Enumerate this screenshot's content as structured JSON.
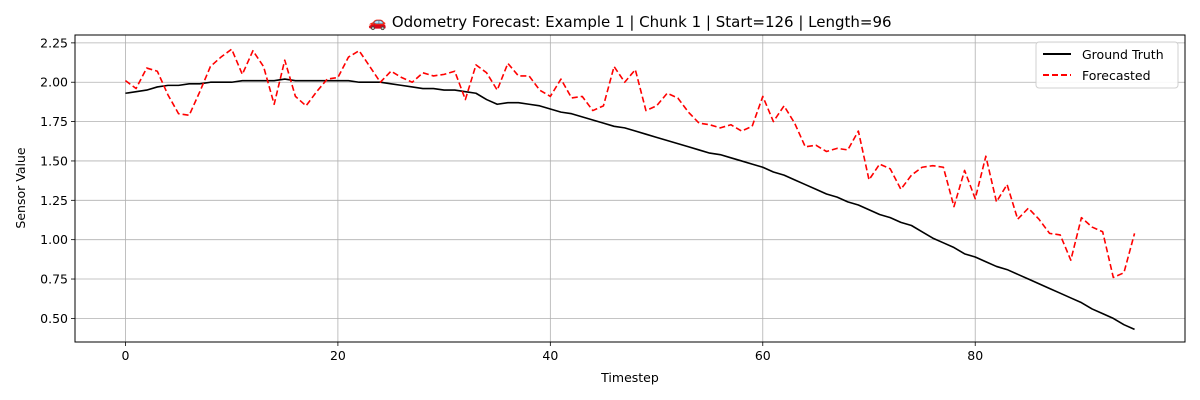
{
  "chart_data": {
    "type": "line",
    "title": "🚗 Odometry Forecast: Example 1 | Chunk 1 | Start=126 | Length=96",
    "xlabel": "Timestep",
    "ylabel": "Sensor Value",
    "xlim": [
      -4.75,
      99.75
    ],
    "ylim": [
      0.35,
      2.3
    ],
    "xticks": [
      0,
      20,
      40,
      60,
      80
    ],
    "yticks": [
      0.5,
      0.75,
      1.0,
      1.25,
      1.5,
      1.75,
      2.0,
      2.25
    ],
    "xtick_labels": [
      "0",
      "20",
      "40",
      "60",
      "80"
    ],
    "ytick_labels": [
      "0.50",
      "0.75",
      "1.00",
      "1.25",
      "1.50",
      "1.75",
      "2.00",
      "2.25"
    ],
    "grid": true,
    "legend_position": "top-right",
    "series": [
      {
        "name": "Ground Truth",
        "color": "#000000",
        "style": "solid",
        "values": [
          1.93,
          1.94,
          1.95,
          1.97,
          1.98,
          1.98,
          1.99,
          1.99,
          2.0,
          2.0,
          2.0,
          2.01,
          2.01,
          2.01,
          2.01,
          2.02,
          2.01,
          2.01,
          2.01,
          2.01,
          2.01,
          2.01,
          2.0,
          2.0,
          2.0,
          1.99,
          1.98,
          1.97,
          1.96,
          1.96,
          1.95,
          1.95,
          1.94,
          1.93,
          1.89,
          1.86,
          1.87,
          1.87,
          1.86,
          1.85,
          1.83,
          1.81,
          1.8,
          1.78,
          1.76,
          1.74,
          1.72,
          1.71,
          1.69,
          1.67,
          1.65,
          1.63,
          1.61,
          1.59,
          1.57,
          1.55,
          1.54,
          1.52,
          1.5,
          1.48,
          1.46,
          1.43,
          1.41,
          1.38,
          1.35,
          1.32,
          1.29,
          1.27,
          1.24,
          1.22,
          1.19,
          1.16,
          1.14,
          1.11,
          1.09,
          1.05,
          1.01,
          0.98,
          0.95,
          0.91,
          0.89,
          0.86,
          0.83,
          0.81,
          0.78,
          0.75,
          0.72,
          0.69,
          0.66,
          0.63,
          0.6,
          0.56,
          0.53,
          0.5,
          0.46,
          0.43
        ]
      },
      {
        "name": "Forecasted",
        "color": "#ff0000",
        "style": "dashed",
        "values": [
          2.01,
          1.96,
          2.09,
          2.07,
          1.92,
          1.8,
          1.79,
          1.94,
          2.1,
          2.16,
          2.21,
          2.05,
          2.2,
          2.1,
          1.86,
          2.14,
          1.91,
          1.85,
          1.94,
          2.02,
          2.03,
          2.16,
          2.2,
          2.1,
          2.0,
          2.07,
          2.03,
          2.0,
          2.06,
          2.04,
          2.05,
          2.07,
          1.89,
          2.11,
          2.06,
          1.95,
          2.12,
          2.04,
          2.04,
          1.95,
          1.91,
          2.02,
          1.9,
          1.91,
          1.82,
          1.85,
          2.1,
          2.0,
          2.08,
          1.82,
          1.85,
          1.93,
          1.9,
          1.81,
          1.74,
          1.73,
          1.71,
          1.73,
          1.69,
          1.72,
          1.91,
          1.75,
          1.85,
          1.74,
          1.59,
          1.6,
          1.56,
          1.58,
          1.57,
          1.69,
          1.38,
          1.48,
          1.45,
          1.32,
          1.41,
          1.46,
          1.47,
          1.46,
          1.21,
          1.44,
          1.26,
          1.53,
          1.24,
          1.35,
          1.13,
          1.2,
          1.13,
          1.04,
          1.03,
          0.87,
          1.14,
          1.08,
          1.05,
          0.76,
          0.79,
          1.04
        ]
      }
    ]
  }
}
